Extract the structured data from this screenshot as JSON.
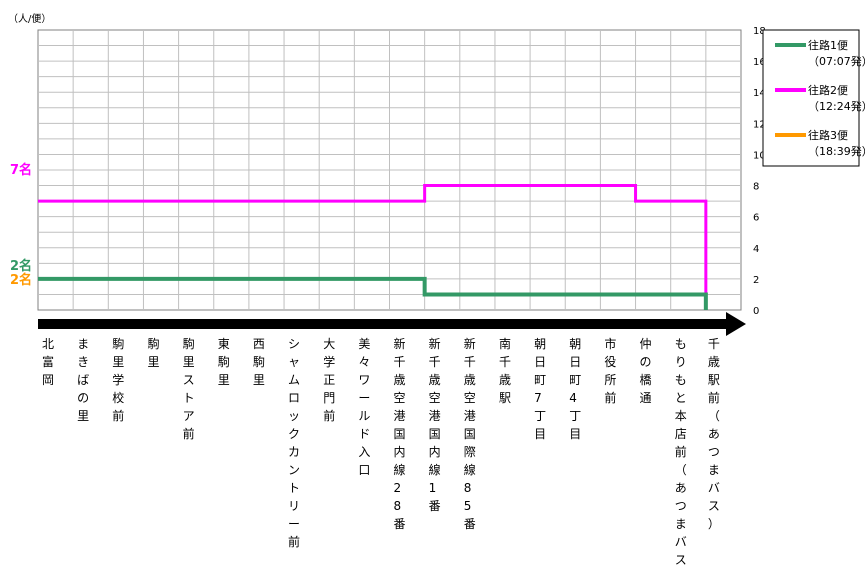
{
  "chart_data": {
    "type": "line",
    "unit_label": "（人/便）",
    "ylim": [
      0,
      18
    ],
    "yticks": [
      0,
      2,
      4,
      6,
      8,
      10,
      12,
      14,
      16,
      18
    ],
    "grid": true,
    "legend_position": "right",
    "categories": [
      "北富岡",
      "まきばの里",
      "駒里学校前",
      "駒里",
      "駒里ストア前",
      "東駒里",
      "西駒里",
      "シャムロックカントリー前",
      "大学正門前",
      "美々ワールド入口",
      "新千歳空港国内線28番",
      "新千歳空港国内線1番",
      "新千歳空港国際線85番",
      "南千歳駅",
      "朝日町7丁目",
      "朝日町4丁目",
      "市役所前",
      "仲の橋通",
      "もりもと本店前（あつまバス）",
      "千歳駅前（あつまバス）"
    ],
    "series": [
      {
        "name": "往路1便",
        "subname": "（07:07発）",
        "color": "#339966",
        "values": [
          2,
          2,
          2,
          2,
          2,
          2,
          2,
          2,
          2,
          2,
          2,
          1,
          1,
          1,
          1,
          1,
          1,
          1,
          1,
          0
        ]
      },
      {
        "name": "往路2便",
        "subname": "（12:24発）",
        "color": "#ff00ff",
        "values": [
          7,
          7,
          7,
          7,
          7,
          7,
          7,
          7,
          7,
          7,
          7,
          8,
          8,
          8,
          8,
          8,
          8,
          7,
          7,
          0
        ]
      },
      {
        "name": "往路3便",
        "subname": "（18:39発）",
        "color": "#ff9900",
        "values": [
          2,
          2,
          2,
          2,
          2,
          2,
          2,
          2,
          2,
          2,
          2,
          1,
          1,
          1,
          1,
          1,
          1,
          1,
          1,
          0
        ]
      }
    ],
    "annotations": [
      {
        "text": "7名",
        "color": "#ff00ff",
        "value": 7
      },
      {
        "text": "2名",
        "color": "#339966",
        "value": 2
      },
      {
        "text": "2名",
        "color": "#ff9900",
        "value": 2
      }
    ]
  }
}
